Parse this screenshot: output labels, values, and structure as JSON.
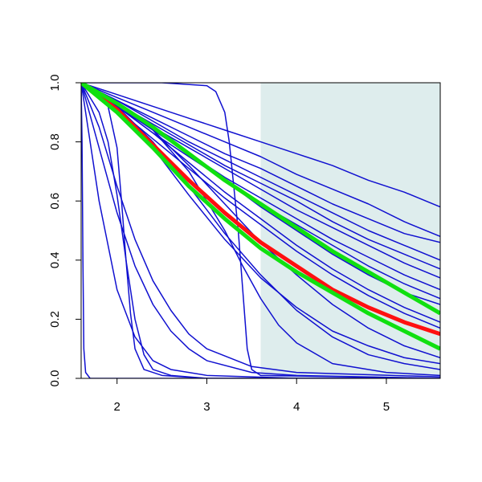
{
  "chart_data": {
    "type": "line",
    "xlim": [
      1.6,
      5.6
    ],
    "ylim": [
      0,
      1
    ],
    "xticks": [
      2,
      3,
      4,
      5
    ],
    "yticks": [
      {
        "value": 0,
        "label": "0.0"
      },
      0.2,
      0.4,
      0.6,
      0.8,
      {
        "value": 1,
        "label": "1.0"
      }
    ],
    "shade": {
      "xlim": [
        3.6,
        5.6
      ],
      "color": "#deeded"
    },
    "series": [
      {
        "color": "#1010d0",
        "width": 1.5,
        "x": [
          1.6,
          2.0,
          2.4,
          2.8,
          3.2,
          3.6,
          4.0,
          4.4,
          4.8,
          5.2,
          5.6
        ],
        "values": [
          1,
          0.96,
          0.92,
          0.88,
          0.84,
          0.8,
          0.76,
          0.72,
          0.67,
          0.63,
          0.58
        ]
      },
      {
        "color": "#1010d0",
        "width": 1.5,
        "x": [
          1.6,
          2.0,
          2.4,
          2.8,
          3.2,
          3.6,
          4.0,
          4.4,
          4.8,
          5.2,
          5.6
        ],
        "values": [
          1,
          0.95,
          0.9,
          0.85,
          0.8,
          0.75,
          0.69,
          0.64,
          0.59,
          0.53,
          0.48
        ]
      },
      {
        "color": "#1010d0",
        "width": 1.5,
        "x": [
          1.6,
          2.0,
          2.4,
          2.8,
          3.2,
          3.6,
          4.0,
          4.4,
          4.8,
          5.2,
          5.6
        ],
        "values": [
          1,
          0.94,
          0.88,
          0.82,
          0.76,
          0.71,
          0.65,
          0.59,
          0.54,
          0.49,
          0.46
        ]
      },
      {
        "color": "#1010d0",
        "width": 1.5,
        "x": [
          1.6,
          2.0,
          2.4,
          2.8,
          3.2,
          3.6,
          4.0,
          4.4,
          4.8,
          5.2,
          5.6
        ],
        "values": [
          1,
          0.94,
          0.87,
          0.8,
          0.74,
          0.68,
          0.62,
          0.56,
          0.5,
          0.45,
          0.4
        ]
      },
      {
        "color": "#1010d0",
        "width": 1.5,
        "x": [
          1.6,
          2.0,
          2.4,
          2.8,
          3.2,
          3.6,
          4.0,
          4.4,
          4.8,
          5.2,
          5.6
        ],
        "values": [
          1,
          0.93,
          0.86,
          0.79,
          0.72,
          0.66,
          0.6,
          0.53,
          0.47,
          0.42,
          0.37
        ]
      },
      {
        "color": "#1010d0",
        "width": 1.5,
        "x": [
          1.6,
          2.0,
          2.4,
          2.8,
          3.2,
          3.6,
          4.0,
          4.4,
          4.8,
          5.2,
          5.6
        ],
        "values": [
          1,
          0.93,
          0.85,
          0.78,
          0.71,
          0.64,
          0.57,
          0.51,
          0.45,
          0.39,
          0.34
        ]
      },
      {
        "color": "#1010d0",
        "width": 1.5,
        "x": [
          1.6,
          2.0,
          2.4,
          2.8,
          3.2,
          3.6,
          4.0,
          4.4,
          4.8,
          5.2,
          5.6
        ],
        "values": [
          1,
          0.92,
          0.84,
          0.76,
          0.68,
          0.61,
          0.54,
          0.47,
          0.41,
          0.35,
          0.3
        ]
      },
      {
        "color": "#1010d0",
        "width": 1.5,
        "x": [
          1.6,
          2.0,
          2.4,
          2.8,
          3.2,
          3.6,
          4.0,
          4.4,
          4.8,
          5.2,
          5.6
        ],
        "values": [
          1,
          0.92,
          0.83,
          0.75,
          0.67,
          0.59,
          0.52,
          0.45,
          0.38,
          0.32,
          0.27
        ]
      },
      {
        "color": "#1010d0",
        "width": 1.5,
        "x": [
          1.6,
          2.0,
          2.4,
          2.8,
          3.2,
          3.6,
          4.0,
          4.4,
          4.8,
          5.2,
          5.6
        ],
        "values": [
          1,
          0.93,
          0.85,
          0.76,
          0.67,
          0.58,
          0.5,
          0.42,
          0.35,
          0.29,
          0.25
        ]
      },
      {
        "color": "#1010d0",
        "width": 1.5,
        "x": [
          1.6,
          2.0,
          2.4,
          2.8,
          3.2,
          3.6,
          4.0,
          4.4,
          4.8,
          5.2,
          5.6
        ],
        "values": [
          1,
          0.92,
          0.83,
          0.73,
          0.63,
          0.54,
          0.45,
          0.37,
          0.3,
          0.24,
          0.19
        ]
      },
      {
        "color": "#1010d0",
        "width": 1.5,
        "x": [
          1.6,
          2.0,
          2.4,
          2.8,
          3.2,
          3.6,
          4.0,
          4.4,
          4.8,
          5.2,
          5.6
        ],
        "values": [
          1,
          0.91,
          0.81,
          0.71,
          0.61,
          0.52,
          0.43,
          0.35,
          0.28,
          0.22,
          0.17
        ]
      },
      {
        "color": "#1010d0",
        "width": 1.5,
        "x": [
          1.6,
          2.0,
          2.4,
          2.8,
          3.2,
          3.6,
          4.0,
          4.4,
          4.8,
          5.2,
          5.6
        ],
        "values": [
          1,
          0.93,
          0.84,
          0.72,
          0.59,
          0.46,
          0.35,
          0.25,
          0.17,
          0.11,
          0.07
        ]
      },
      {
        "color": "#1010d0",
        "width": 1.5,
        "x": [
          1.6,
          2.0,
          2.4,
          2.8,
          3.2,
          3.6,
          4.0,
          4.4,
          4.8,
          5.2,
          5.6
        ],
        "values": [
          1,
          0.92,
          0.8,
          0.65,
          0.49,
          0.35,
          0.23,
          0.14,
          0.08,
          0.05,
          0.03
        ]
      },
      {
        "color": "#1010d0",
        "width": 1.5,
        "x": [
          1.6,
          2.0,
          2.4,
          2.8,
          3.2,
          3.6,
          4.0,
          4.4,
          4.8,
          5.2,
          5.6
        ],
        "values": [
          1,
          0.9,
          0.78,
          0.62,
          0.47,
          0.34,
          0.24,
          0.16,
          0.11,
          0.07,
          0.05
        ]
      },
      {
        "color": "#1010d0",
        "width": 1.5,
        "x": [
          1.6,
          2.5,
          3.0,
          3.1,
          3.2,
          3.25,
          3.3,
          3.35,
          3.4,
          3.45,
          3.5,
          3.6,
          5.6
        ],
        "values": [
          1,
          1,
          0.99,
          0.97,
          0.9,
          0.8,
          0.65,
          0.5,
          0.3,
          0.1,
          0.03,
          0.01,
          0
        ]
      },
      {
        "color": "#1010d0",
        "width": 1.5,
        "x": [
          1.6,
          1.61,
          1.62,
          1.63,
          1.65,
          1.7,
          5.6
        ],
        "values": [
          1,
          0.8,
          0.4,
          0.1,
          0.02,
          0,
          0
        ]
      },
      {
        "color": "#1010d0",
        "width": 1.5,
        "x": [
          1.6,
          1.8,
          1.9,
          2.0,
          2.05,
          2.1,
          2.15,
          2.2,
          2.3,
          2.5,
          3,
          5.6
        ],
        "values": [
          1,
          0.97,
          0.92,
          0.78,
          0.6,
          0.4,
          0.22,
          0.1,
          0.03,
          0.01,
          0,
          0
        ]
      },
      {
        "color": "#1010d0",
        "width": 1.5,
        "x": [
          1.6,
          1.8,
          1.9,
          2.0,
          2.1,
          2.2,
          2.3,
          2.4,
          2.6,
          3,
          5.6
        ],
        "values": [
          1,
          0.9,
          0.8,
          0.62,
          0.4,
          0.2,
          0.08,
          0.03,
          0.01,
          0,
          0
        ]
      },
      {
        "color": "#1010d0",
        "width": 1.5,
        "x": [
          1.6,
          1.8,
          2.0,
          2.2,
          2.4,
          2.6,
          2.8,
          3.0,
          3.5,
          4,
          5.6
        ],
        "values": [
          1,
          0.78,
          0.56,
          0.38,
          0.25,
          0.16,
          0.1,
          0.06,
          0.02,
          0.01,
          0
        ]
      },
      {
        "color": "#1010d0",
        "width": 1.5,
        "x": [
          1.6,
          1.8,
          2.0,
          2.2,
          2.4,
          2.6,
          2.8,
          3.0,
          3.5,
          4,
          5.6
        ],
        "values": [
          1,
          0.85,
          0.65,
          0.47,
          0.33,
          0.23,
          0.15,
          0.1,
          0.04,
          0.02,
          0.005
        ]
      },
      {
        "color": "#1010d0",
        "width": 1.5,
        "x": [
          1.6,
          2.0,
          2.4,
          2.8,
          3.0,
          3.2,
          3.4,
          3.6,
          3.8,
          4.0,
          4.4,
          5.0,
          5.6
        ],
        "values": [
          1,
          0.93,
          0.84,
          0.7,
          0.6,
          0.5,
          0.38,
          0.27,
          0.18,
          0.12,
          0.05,
          0.02,
          0.01
        ]
      },
      {
        "color": "#1010d0",
        "width": 1.5,
        "x": [
          1.6,
          1.8,
          2.0,
          2.2,
          2.4,
          2.6,
          3,
          3.5,
          4,
          5.6
        ],
        "values": [
          1,
          0.6,
          0.3,
          0.14,
          0.06,
          0.03,
          0.01,
          0.005,
          0,
          0
        ]
      },
      {
        "color": "#ff1010",
        "width": 5,
        "x": [
          1.6,
          2.0,
          2.4,
          2.8,
          3.2,
          3.6,
          4.0,
          4.4,
          4.8,
          5.2,
          5.6
        ],
        "values": [
          1,
          0.91,
          0.79,
          0.67,
          0.56,
          0.46,
          0.38,
          0.3,
          0.24,
          0.19,
          0.15
        ]
      },
      {
        "color": "#10e010",
        "width": 5,
        "x": [
          1.6,
          2.0,
          2.4,
          2.8,
          3.2,
          3.6,
          4.0,
          4.4,
          4.8,
          5.2,
          5.6
        ],
        "values": [
          1,
          0.9,
          0.78,
          0.65,
          0.54,
          0.44,
          0.36,
          0.29,
          0.22,
          0.16,
          0.1
        ]
      },
      {
        "color": "#10e010",
        "width": 5,
        "x": [
          1.6,
          2.0,
          2.4,
          2.8,
          3.2,
          3.6,
          4.0,
          4.4,
          4.8,
          5.2,
          5.6
        ],
        "values": [
          1,
          0.93,
          0.85,
          0.76,
          0.67,
          0.59,
          0.51,
          0.43,
          0.36,
          0.29,
          0.22
        ]
      }
    ]
  }
}
